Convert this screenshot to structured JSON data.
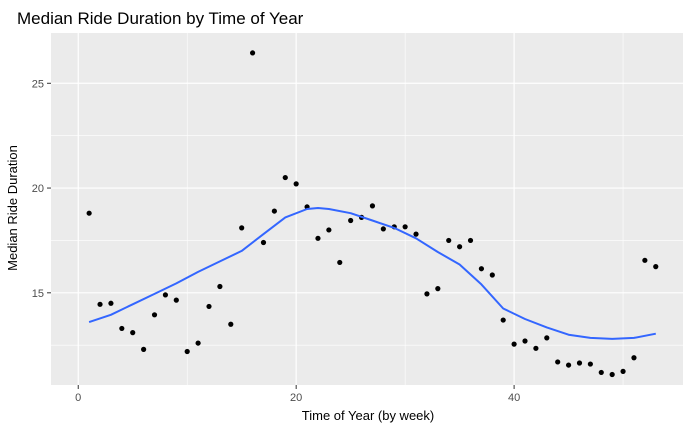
{
  "chart_data": {
    "type": "scatter",
    "title": "Median Ride Duration by Time of Year",
    "xlabel": "Time of Year (by week)",
    "ylabel": "Median Ride Duration",
    "xlim": [
      -2.5,
      55.5
    ],
    "ylim": [
      10.6,
      27.4
    ],
    "x_ticks": [
      0,
      20,
      40
    ],
    "x_tick_labels": [
      "0",
      "20",
      "40"
    ],
    "y_ticks": [
      15,
      20,
      25
    ],
    "y_tick_labels": [
      "15",
      "20",
      "25"
    ],
    "grid": true,
    "legend": "none",
    "colors": {
      "panel_background": "#ebebeb",
      "grid_major": "#ffffff",
      "point": "#000000",
      "smooth_line": "#3366ff"
    },
    "points": {
      "x": [
        1,
        2,
        3,
        4,
        5,
        6,
        7,
        8,
        9,
        10,
        11,
        12,
        13,
        14,
        15,
        16,
        17,
        18,
        19,
        20,
        21,
        22,
        23,
        24,
        25,
        26,
        27,
        28,
        29,
        30,
        31,
        32,
        33,
        34,
        35,
        36,
        37,
        38,
        39,
        40,
        41,
        42,
        43,
        44,
        45,
        46,
        47,
        48,
        49,
        50,
        51,
        52,
        53
      ],
      "y": [
        18.8,
        14.45,
        14.5,
        13.3,
        13.1,
        12.3,
        13.95,
        14.9,
        14.65,
        12.2,
        12.6,
        14.35,
        15.3,
        13.5,
        18.1,
        26.45,
        17.4,
        18.9,
        20.5,
        20.2,
        19.1,
        17.6,
        18.0,
        16.45,
        18.45,
        18.6,
        19.15,
        18.05,
        18.15,
        18.15,
        17.8,
        14.95,
        15.2,
        17.5,
        17.2,
        17.5,
        16.15,
        15.85,
        13.7,
        12.55,
        12.7,
        12.35,
        12.85,
        11.7,
        11.55,
        11.65,
        11.6,
        11.2,
        11.1,
        11.25,
        11.9,
        16.55,
        16.25
      ]
    },
    "smooth": {
      "x": [
        1,
        3,
        5,
        7,
        9,
        11,
        13,
        15,
        17,
        19,
        21,
        22,
        23,
        25,
        27,
        29,
        31,
        33,
        35,
        37,
        39,
        41,
        43,
        45,
        47,
        49,
        51,
        53
      ],
      "y": [
        13.6,
        13.95,
        14.45,
        14.95,
        15.45,
        16.0,
        16.5,
        17.0,
        17.8,
        18.6,
        19.0,
        19.05,
        19.0,
        18.8,
        18.45,
        18.1,
        17.6,
        16.95,
        16.35,
        15.4,
        14.25,
        13.75,
        13.35,
        13.0,
        12.85,
        12.8,
        12.85,
        13.05
      ]
    }
  }
}
